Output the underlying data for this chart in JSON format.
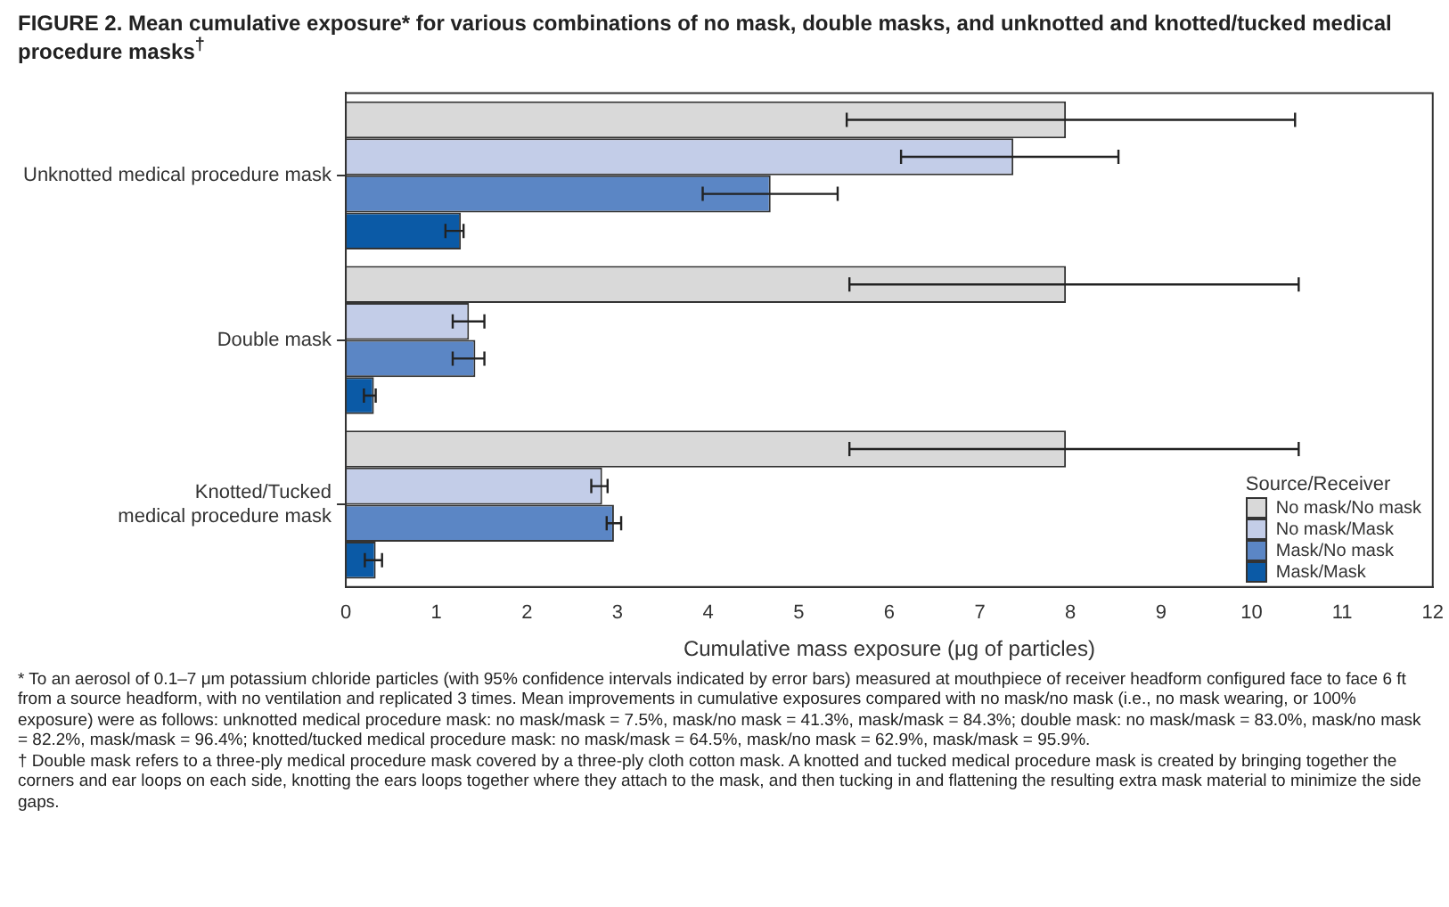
{
  "chart_data": {
    "type": "bar",
    "orientation": "horizontal",
    "title": "FIGURE 2. Mean cumulative exposure* for various combinations of no mask, double masks, and unknotted and knotted/tucked medical procedure masks$^{†}$",
    "categories": [
      "Unknotted medical procedure mask",
      "Double mask",
      "Knotted/Tucked\nmedical procedure mask"
    ],
    "series": [
      {
        "name": "No mask/No mask",
        "color": "#d9d9d9",
        "values": [
          7.95,
          7.95,
          7.95
        ],
        "errors": [
          [
            5.53,
            10.48
          ],
          [
            5.56,
            10.52
          ],
          [
            5.56,
            10.52
          ]
        ]
      },
      {
        "name": "No mask/Mask",
        "color": "#c3cde8",
        "values": [
          7.37,
          1.36,
          2.83
        ],
        "errors": [
          [
            6.13,
            8.53
          ],
          [
            1.18,
            1.53
          ],
          [
            2.71,
            2.89
          ]
        ]
      },
      {
        "name": "Mask/No mask",
        "color": "#5b86c5",
        "values": [
          4.69,
          1.43,
          2.96
        ],
        "errors": [
          [
            3.94,
            5.43
          ],
          [
            1.18,
            1.53
          ],
          [
            2.88,
            3.04
          ]
        ]
      },
      {
        "name": "Mask/Mask",
        "color": "#0b5aa6",
        "values": [
          1.27,
          0.31,
          0.33
        ],
        "errors": [
          [
            1.1,
            1.3
          ],
          [
            0.2,
            0.33
          ],
          [
            0.21,
            0.4
          ]
        ]
      }
    ],
    "xlim": [
      0,
      12
    ],
    "xticks": [
      0,
      1,
      2,
      3,
      4,
      5,
      6,
      7,
      8,
      9,
      10,
      11,
      12
    ],
    "xlabel": "Cumulative mass exposure (μg of particles)",
    "legend_title": "Source/Receiver",
    "legend": "bottom right",
    "grid": false,
    "annotations": [
      "* To an aerosol of 0.1–7 μm potassium chloride particles (with 95% confidence intervals indicated by error bars) measured at mouthpiece of receiver headform configured face to face 6 ft from a source headform, with no ventilation and replicated 3 times. Mean improvements in cumulative exposures compared with no mask/no mask (i.e., no mask wearing, or 100% exposure) were as follows: unknotted medical procedure mask: no mask/mask = 7.5%, mask/no mask = 41.3%, mask/mask = 84.3%; double mask: no mask/mask = 83.0%, mask/no mask = 82.2%, mask/mask = 96.4%; knotted/tucked medical procedure mask: no mask/mask = 64.5%, mask/no mask = 62.9%, mask/mask = 95.9%.",
      "† Double mask refers to a three-ply medical procedure mask covered by a three-ply cloth cotton mask. A knotted and tucked medical procedure mask is created by bringing together the corners and ear loops on each side, knotting the ears loops together where they attach to the mask, and then tucking in and flattening the resulting extra mask material to minimize the side gaps."
    ]
  }
}
